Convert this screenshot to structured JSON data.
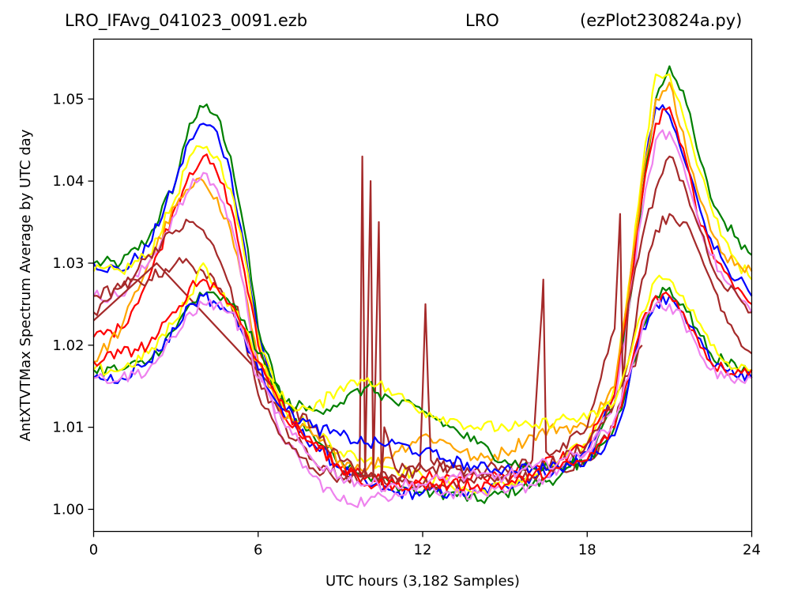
{
  "title": {
    "left": "LRO_IFAvg_041023_0091.ezb",
    "center": "LRO",
    "right": "(ezPlot230824a.py)"
  },
  "chart_data": {
    "type": "line",
    "title": "LRO_IFAvg_041023_0091.ezb          LRO          (ezPlot230824a.py)",
    "xlabel": "UTC hours  (3,182 Samples)",
    "ylabel": "AntXTVTMax Spectrum Average by UTC day",
    "xlim": [
      0,
      24
    ],
    "ylim": [
      0.9973,
      1.0573
    ],
    "x_ticks": [
      0,
      6,
      12,
      18,
      24
    ],
    "x_tick_labels": [
      "0",
      "6",
      "12",
      "18",
      "24"
    ],
    "y_ticks": [
      1.0,
      1.01,
      1.02,
      1.03,
      1.04,
      1.05
    ],
    "y_tick_labels": [
      "1.00",
      "1.01",
      "1.02",
      "1.03",
      "1.04",
      "1.05"
    ],
    "grid": false,
    "legend": "none",
    "series": [
      {
        "color": "#008000",
        "x": [
          0,
          1,
          2,
          3,
          3.5,
          4,
          4.5,
          5,
          5.5,
          6,
          7,
          8,
          9,
          10,
          11,
          12,
          13,
          14,
          15,
          16,
          17,
          18,
          19,
          19.5,
          20,
          20.5,
          21,
          21.5,
          22,
          22.5,
          23,
          23.5,
          24
        ],
        "y": [
          1.03,
          1.03,
          1.033,
          1.04,
          1.047,
          1.049,
          1.048,
          1.043,
          1.034,
          1.022,
          1.012,
          1.009,
          1.006,
          1.004,
          1.003,
          1.002,
          1.002,
          1.001,
          1.002,
          1.003,
          1.004,
          1.006,
          1.013,
          1.024,
          1.038,
          1.05,
          1.054,
          1.051,
          1.044,
          1.038,
          1.035,
          1.033,
          1.031
        ]
      },
      {
        "color": "#0000ff",
        "x": [
          0,
          1,
          2,
          3,
          3.5,
          4,
          4.5,
          5,
          5.5,
          6,
          7,
          8,
          9,
          10,
          11,
          12,
          13,
          14,
          15,
          16,
          17,
          18,
          19,
          19.5,
          20,
          20.5,
          21,
          21.5,
          22,
          22.5,
          23,
          23.5,
          24
        ],
        "y": [
          1.03,
          1.029,
          1.032,
          1.04,
          1.045,
          1.047,
          1.046,
          1.041,
          1.032,
          1.021,
          1.011,
          1.008,
          1.005,
          1.003,
          1.002,
          1.002,
          1.002,
          1.002,
          1.003,
          1.004,
          1.005,
          1.007,
          1.014,
          1.026,
          1.04,
          1.049,
          1.048,
          1.043,
          1.038,
          1.033,
          1.03,
          1.028,
          1.026
        ]
      },
      {
        "color": "#ffff00",
        "x": [
          0,
          1,
          2,
          3,
          3.5,
          4,
          4.5,
          5,
          5.5,
          6,
          7,
          8,
          9,
          10,
          11,
          12,
          13,
          14,
          15,
          16,
          17,
          18,
          19,
          19.5,
          20,
          20.5,
          21,
          21.5,
          22,
          22.5,
          23,
          23.5,
          24
        ],
        "y": [
          1.029,
          1.029,
          1.031,
          1.038,
          1.043,
          1.044,
          1.043,
          1.039,
          1.031,
          1.021,
          1.012,
          1.01,
          1.007,
          1.006,
          1.005,
          1.004,
          1.003,
          1.002,
          1.003,
          1.004,
          1.006,
          1.008,
          1.015,
          1.027,
          1.041,
          1.053,
          1.053,
          1.048,
          1.042,
          1.037,
          1.033,
          1.03,
          1.028
        ]
      },
      {
        "color": "#ff0000",
        "x": [
          0,
          1,
          2,
          3,
          3.5,
          4,
          4.5,
          5,
          5.5,
          6,
          7,
          8,
          9,
          10,
          11,
          12,
          13,
          14,
          15,
          16,
          17,
          18,
          19,
          19.5,
          20,
          20.5,
          21,
          21.5,
          22,
          22.5,
          23,
          23.5,
          24
        ],
        "y": [
          1.021,
          1.022,
          1.028,
          1.037,
          1.041,
          1.043,
          1.041,
          1.037,
          1.029,
          1.02,
          1.011,
          1.008,
          1.005,
          1.004,
          1.003,
          1.004,
          1.004,
          1.004,
          1.004,
          1.005,
          1.006,
          1.008,
          1.014,
          1.025,
          1.038,
          1.047,
          1.049,
          1.044,
          1.036,
          1.032,
          1.029,
          1.027,
          1.025
        ]
      },
      {
        "color": "#ffa500",
        "x": [
          0,
          1,
          2,
          3,
          3.5,
          4,
          4.5,
          5,
          5.5,
          6,
          7,
          8,
          9,
          10,
          11,
          12,
          13,
          14,
          15,
          16,
          17,
          18,
          19,
          19.5,
          20,
          20.5,
          21,
          21.5,
          22,
          22.5,
          23,
          23.5,
          24
        ],
        "y": [
          1.018,
          1.022,
          1.03,
          1.037,
          1.039,
          1.04,
          1.038,
          1.034,
          1.027,
          1.018,
          1.011,
          1.009,
          1.006,
          1.005,
          1.007,
          1.009,
          1.008,
          1.006,
          1.007,
          1.009,
          1.01,
          1.01,
          1.015,
          1.026,
          1.04,
          1.05,
          1.052,
          1.046,
          1.039,
          1.034,
          1.031,
          1.03,
          1.029
        ]
      },
      {
        "color": "#ee82ee",
        "x": [
          0,
          1,
          2,
          3,
          3.5,
          4,
          4.5,
          5,
          5.5,
          6,
          7,
          8,
          9,
          10,
          11,
          12,
          13,
          14,
          15,
          16,
          17,
          18,
          19,
          19.5,
          20,
          20.5,
          21,
          21.5,
          22,
          22.5,
          23,
          23.5,
          24
        ],
        "y": [
          1.026,
          1.026,
          1.03,
          1.036,
          1.039,
          1.041,
          1.039,
          1.035,
          1.027,
          1.017,
          1.008,
          1.004,
          1.001,
          1.001,
          1.002,
          1.003,
          1.002,
          1.002,
          1.002,
          1.003,
          1.005,
          1.007,
          1.013,
          1.024,
          1.036,
          1.045,
          1.046,
          1.042,
          1.036,
          1.031,
          1.028,
          1.026,
          1.024
        ]
      },
      {
        "color": "#a52a2a",
        "x": [
          0,
          1,
          2,
          3,
          3.5,
          4,
          4.5,
          5,
          5.5,
          6,
          7,
          8,
          9,
          9.7,
          9.8,
          9.9,
          10.1,
          10.2,
          10.4,
          10.5,
          10.6,
          11,
          11.9,
          12.1,
          12.3,
          13,
          14,
          15,
          16,
          16.3,
          16.4,
          16.5,
          17,
          18,
          18.5,
          19,
          19.2,
          19.3,
          19.5,
          20,
          20.5,
          21,
          21.5,
          22,
          22.5,
          23,
          23.5,
          24
        ],
        "y": [
          1.024,
          1.027,
          1.031,
          1.034,
          1.035,
          1.034,
          1.031,
          1.027,
          1.021,
          1.014,
          1.008,
          1.005,
          1.004,
          1.004,
          1.043,
          1.004,
          1.04,
          1.004,
          1.035,
          1.003,
          1.01,
          1.005,
          1.005,
          1.025,
          1.006,
          1.005,
          1.005,
          1.005,
          1.006,
          1.022,
          1.028,
          1.007,
          1.007,
          1.01,
          1.016,
          1.022,
          1.036,
          1.015,
          1.025,
          1.033,
          1.039,
          1.043,
          1.04,
          1.035,
          1.03,
          1.027,
          1.026,
          1.024
        ]
      },
      {
        "color": "#a52a2a",
        "x": [
          0,
          1,
          2,
          3,
          3.5,
          4,
          4.5,
          5,
          5.5,
          6,
          7,
          8,
          9,
          10,
          11,
          12,
          13,
          14,
          15,
          16,
          17,
          18,
          19,
          19.5,
          20,
          20.5,
          21,
          21.5,
          22,
          22.5,
          23,
          23.5,
          24
        ],
        "y": [
          1.026,
          1.027,
          1.028,
          1.03,
          1.03,
          1.029,
          1.027,
          1.025,
          1.022,
          1.016,
          1.01,
          1.006,
          1.004,
          1.004,
          1.004,
          1.005,
          1.005,
          1.004,
          1.004,
          1.004,
          1.005,
          1.006,
          1.01,
          1.018,
          1.028,
          1.034,
          1.036,
          1.035,
          1.032,
          1.028,
          1.024,
          1.021,
          1.019
        ]
      },
      {
        "color": "#a52a2a",
        "x": [
          0,
          2.3,
          6.5,
          7,
          8,
          9,
          10,
          11,
          12,
          13,
          14,
          15,
          16,
          17,
          18,
          19,
          20
        ],
        "y": [
          1.023,
          1.03,
          1.015,
          1.013,
          1.01,
          1.006,
          1.004,
          1.003,
          1.003,
          1.003,
          1.004,
          1.004,
          1.005,
          1.006,
          1.008,
          1.013,
          1.02
        ]
      },
      {
        "color": "#008000",
        "x": [
          0,
          1,
          2,
          3,
          3.5,
          4,
          4.5,
          5,
          5.5,
          6,
          7,
          8,
          9,
          10,
          11,
          12,
          13,
          14,
          15,
          16,
          17,
          18,
          19,
          19.5,
          20,
          20.5,
          21,
          21.5,
          22,
          22.5,
          23,
          23.5,
          24
        ],
        "y": [
          1.017,
          1.017,
          1.018,
          1.022,
          1.025,
          1.026,
          1.026,
          1.025,
          1.023,
          1.019,
          1.013,
          1.012,
          1.013,
          1.015,
          1.013,
          1.012,
          1.01,
          1.008,
          1.006,
          1.005,
          1.005,
          1.006,
          1.01,
          1.015,
          1.022,
          1.026,
          1.027,
          1.025,
          1.022,
          1.019,
          1.018,
          1.017,
          1.017
        ]
      },
      {
        "color": "#0000ff",
        "x": [
          0,
          1,
          2,
          3,
          3.5,
          4,
          4.5,
          5,
          5.5,
          6,
          7,
          8,
          9,
          10,
          11,
          12,
          13,
          14,
          15,
          16,
          17,
          18,
          19,
          19.5,
          20,
          20.5,
          21,
          21.5,
          22,
          22.5,
          23,
          23.5,
          24
        ],
        "y": [
          1.016,
          1.016,
          1.018,
          1.022,
          1.025,
          1.026,
          1.025,
          1.024,
          1.021,
          1.017,
          1.012,
          1.01,
          1.009,
          1.008,
          1.008,
          1.007,
          1.006,
          1.005,
          1.005,
          1.005,
          1.005,
          1.006,
          1.009,
          1.015,
          1.022,
          1.025,
          1.026,
          1.024,
          1.021,
          1.018,
          1.017,
          1.016,
          1.016
        ]
      },
      {
        "color": "#ffff00",
        "x": [
          0,
          1,
          2,
          3,
          3.5,
          4,
          4.5,
          5,
          5.5,
          6,
          7,
          8,
          9,
          10,
          11,
          12,
          13,
          14,
          15,
          16,
          17,
          18,
          19,
          19.5,
          20,
          20.5,
          21,
          21.5,
          22,
          22.5,
          23,
          23.5,
          24
        ],
        "y": [
          1.017,
          1.017,
          1.019,
          1.023,
          1.026,
          1.03,
          1.027,
          1.025,
          1.022,
          1.018,
          1.013,
          1.012,
          1.015,
          1.016,
          1.014,
          1.012,
          1.011,
          1.01,
          1.01,
          1.01,
          1.011,
          1.011,
          1.013,
          1.018,
          1.024,
          1.028,
          1.028,
          1.026,
          1.023,
          1.02,
          1.018,
          1.017,
          1.017
        ]
      },
      {
        "color": "#ff0000",
        "x": [
          0,
          1,
          2,
          3,
          3.5,
          4,
          4.5,
          5,
          5.5,
          6,
          7,
          8,
          9,
          10,
          11,
          12,
          13,
          14,
          15,
          16,
          17,
          18,
          19,
          19.5,
          20,
          20.5,
          21,
          21.5,
          22,
          22.5,
          23,
          23.5,
          24
        ],
        "y": [
          1.018,
          1.019,
          1.02,
          1.024,
          1.027,
          1.028,
          1.027,
          1.025,
          1.022,
          1.018,
          1.012,
          1.008,
          1.005,
          1.003,
          1.003,
          1.003,
          1.003,
          1.003,
          1.003,
          1.004,
          1.005,
          1.006,
          1.01,
          1.016,
          1.023,
          1.026,
          1.026,
          1.024,
          1.021,
          1.018,
          1.017,
          1.017,
          1.017
        ]
      },
      {
        "color": "#ee82ee",
        "x": [
          0,
          1,
          2,
          3,
          3.5,
          4,
          4.5,
          5,
          5.5,
          6,
          7,
          8,
          9,
          10,
          11,
          12,
          13,
          14,
          15,
          16,
          17,
          18,
          19,
          19.5,
          20,
          20.5,
          21,
          21.5,
          22,
          22.5,
          23,
          23.5,
          24
        ],
        "y": [
          1.016,
          1.016,
          1.017,
          1.021,
          1.024,
          1.025,
          1.025,
          1.024,
          1.021,
          1.016,
          1.01,
          1.006,
          1.004,
          1.003,
          1.003,
          1.003,
          1.004,
          1.004,
          1.004,
          1.005,
          1.006,
          1.007,
          1.011,
          1.016,
          1.022,
          1.025,
          1.025,
          1.023,
          1.02,
          1.017,
          1.016,
          1.016,
          1.016
        ]
      }
    ]
  }
}
